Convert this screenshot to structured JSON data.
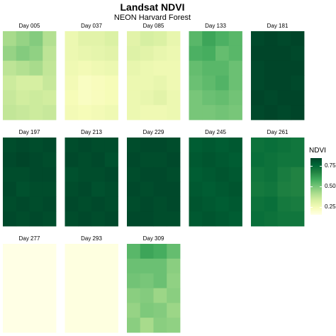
{
  "chart_data": {
    "type": "heatmap",
    "title": "Landsat NDVI",
    "subtitle": "NEON Harvard Forest",
    "legend": {
      "title": "NDVI",
      "ticks": [
        0.75,
        0.5,
        0.25
      ],
      "tick_labels": [
        "0.75",
        "0.50",
        "0.25"
      ],
      "range": [
        0.15,
        0.85
      ],
      "position": "right"
    },
    "colormap": [
      "#ffffe5",
      "#f7fcb9",
      "#d9f0a3",
      "#addd8e",
      "#78c679",
      "#41ab5d",
      "#238443",
      "#006837",
      "#004529"
    ],
    "panels": [
      {
        "label": "Day 005",
        "values": [
          [
            0.42,
            0.45,
            0.48,
            0.4
          ],
          [
            0.45,
            0.48,
            0.46,
            0.38
          ],
          [
            0.38,
            0.4,
            0.42,
            0.37
          ],
          [
            0.35,
            0.33,
            0.33,
            0.36
          ],
          [
            0.36,
            0.34,
            0.35,
            0.34
          ],
          [
            0.37,
            0.36,
            0.35,
            0.36
          ]
        ]
      },
      {
        "label": "Day 037",
        "values": [
          [
            0.27,
            0.3,
            0.3,
            0.32
          ],
          [
            0.27,
            0.28,
            0.29,
            0.3
          ],
          [
            0.26,
            0.25,
            0.26,
            0.27
          ],
          [
            0.25,
            0.22,
            0.23,
            0.24
          ],
          [
            0.24,
            0.22,
            0.23,
            0.24
          ],
          [
            0.25,
            0.24,
            0.25,
            0.26
          ]
        ]
      },
      {
        "label": "Day 085",
        "values": [
          [
            0.3,
            0.33,
            0.32,
            0.28
          ],
          [
            0.31,
            0.3,
            0.28,
            0.27
          ],
          [
            0.28,
            0.27,
            0.26,
            0.26
          ],
          [
            0.27,
            0.27,
            0.28,
            0.26
          ],
          [
            0.27,
            0.28,
            0.3,
            0.27
          ],
          [
            0.27,
            0.26,
            0.26,
            0.27
          ]
        ]
      },
      {
        "label": "Day 133",
        "values": [
          [
            0.55,
            0.6,
            0.57,
            0.55
          ],
          [
            0.57,
            0.58,
            0.53,
            0.55
          ],
          [
            0.53,
            0.55,
            0.55,
            0.52
          ],
          [
            0.52,
            0.54,
            0.56,
            0.52
          ],
          [
            0.5,
            0.52,
            0.53,
            0.51
          ],
          [
            0.5,
            0.5,
            0.51,
            0.5
          ]
        ]
      },
      {
        "label": "Day 181",
        "values": [
          [
            0.84,
            0.85,
            0.84,
            0.85
          ],
          [
            0.85,
            0.86,
            0.85,
            0.84
          ],
          [
            0.84,
            0.85,
            0.86,
            0.85
          ],
          [
            0.84,
            0.85,
            0.85,
            0.84
          ],
          [
            0.85,
            0.84,
            0.85,
            0.85
          ],
          [
            0.84,
            0.85,
            0.84,
            0.85
          ]
        ]
      },
      {
        "label": "Day 197",
        "values": [
          [
            0.83,
            0.84,
            0.83,
            0.84
          ],
          [
            0.84,
            0.85,
            0.84,
            0.83
          ],
          [
            0.83,
            0.83,
            0.84,
            0.84
          ],
          [
            0.84,
            0.82,
            0.83,
            0.83
          ],
          [
            0.83,
            0.84,
            0.83,
            0.84
          ],
          [
            0.84,
            0.83,
            0.84,
            0.83
          ]
        ]
      },
      {
        "label": "Day 213",
        "values": [
          [
            0.83,
            0.84,
            0.83,
            0.83
          ],
          [
            0.84,
            0.83,
            0.84,
            0.82
          ],
          [
            0.82,
            0.83,
            0.83,
            0.84
          ],
          [
            0.83,
            0.84,
            0.82,
            0.83
          ],
          [
            0.84,
            0.83,
            0.84,
            0.83
          ],
          [
            0.83,
            0.84,
            0.83,
            0.84
          ]
        ]
      },
      {
        "label": "Day 229",
        "values": [
          [
            0.83,
            0.84,
            0.84,
            0.83
          ],
          [
            0.84,
            0.83,
            0.83,
            0.84
          ],
          [
            0.83,
            0.84,
            0.84,
            0.83
          ],
          [
            0.84,
            0.83,
            0.84,
            0.84
          ],
          [
            0.83,
            0.84,
            0.83,
            0.84
          ],
          [
            0.84,
            0.84,
            0.83,
            0.83
          ]
        ]
      },
      {
        "label": "Day 245",
        "values": [
          [
            0.79,
            0.8,
            0.79,
            0.8
          ],
          [
            0.8,
            0.81,
            0.8,
            0.79
          ],
          [
            0.79,
            0.8,
            0.81,
            0.8
          ],
          [
            0.8,
            0.79,
            0.8,
            0.81
          ],
          [
            0.81,
            0.8,
            0.79,
            0.8
          ],
          [
            0.8,
            0.81,
            0.8,
            0.79
          ]
        ]
      },
      {
        "label": "Day 261",
        "values": [
          [
            0.73,
            0.74,
            0.73,
            0.72
          ],
          [
            0.74,
            0.73,
            0.72,
            0.72
          ],
          [
            0.72,
            0.73,
            0.7,
            0.68
          ],
          [
            0.71,
            0.72,
            0.69,
            0.68
          ],
          [
            0.73,
            0.74,
            0.71,
            0.7
          ],
          [
            0.74,
            0.73,
            0.72,
            0.72
          ]
        ]
      },
      {
        "label": "Day 277",
        "values": [
          [
            0.15,
            0.15,
            0.15,
            0.15
          ],
          [
            0.15,
            0.15,
            0.15,
            0.15
          ],
          [
            0.15,
            0.15,
            0.15,
            0.15
          ],
          [
            0.15,
            0.15,
            0.15,
            0.15
          ],
          [
            0.15,
            0.15,
            0.15,
            0.15
          ],
          [
            0.15,
            0.15,
            0.15,
            0.15
          ]
        ]
      },
      {
        "label": "Day 293",
        "values": [
          [
            0.16,
            0.16,
            0.16,
            0.16
          ],
          [
            0.16,
            0.16,
            0.16,
            0.16
          ],
          [
            0.16,
            0.16,
            0.16,
            0.16
          ],
          [
            0.16,
            0.16,
            0.16,
            0.16
          ],
          [
            0.16,
            0.16,
            0.16,
            0.16
          ],
          [
            0.16,
            0.16,
            0.16,
            0.16
          ]
        ]
      },
      {
        "label": "Day 309",
        "values": [
          [
            0.55,
            0.6,
            0.58,
            0.53
          ],
          [
            0.52,
            0.52,
            0.52,
            0.47
          ],
          [
            0.51,
            0.5,
            0.52,
            0.46
          ],
          [
            0.47,
            0.48,
            0.44,
            0.47
          ],
          [
            0.45,
            0.49,
            0.48,
            0.44
          ],
          [
            0.47,
            0.42,
            0.47,
            0.46
          ]
        ]
      }
    ]
  }
}
